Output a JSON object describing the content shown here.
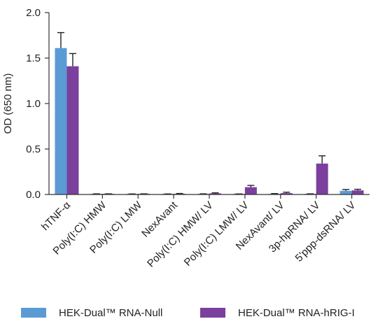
{
  "chart_data": {
    "type": "bar",
    "ylabel": "OD (650 nm)",
    "xlabel": "",
    "ylim": [
      0,
      2.0
    ],
    "yticks": [
      "0.0",
      "0.5",
      "1.0",
      "1.5",
      "2.0"
    ],
    "ytick_values": [
      0,
      0.5,
      1.0,
      1.5,
      2.0
    ],
    "grid": false,
    "legend_position": "bottom",
    "categories": [
      "hTNF-α",
      "Poly(I:C) HMW",
      "Poly(I:C) LMW",
      "NexAvant",
      "Poly(I:C) HMW/ LV",
      "Poly(I:C) LMW/ LV",
      "NexAvant/ LV",
      "3p-hpRNA/ LV",
      "5'ppp-dsRNA/ LV"
    ],
    "series": [
      {
        "name": "HEK-Dual™ RNA-Null",
        "color": "#5b9bd5",
        "values": [
          1.61,
          0.005,
          0.004,
          0.004,
          0.005,
          0.004,
          0.006,
          0.005,
          0.04
        ],
        "errors": [
          0.17,
          0.002,
          0.002,
          0.002,
          0.002,
          0.002,
          0.004,
          0.002,
          0.015
        ]
      },
      {
        "name": "HEK-Dual™ RNA-hRIG-I",
        "color": "#7b3f9e",
        "values": [
          1.41,
          0.005,
          0.005,
          0.007,
          0.012,
          0.08,
          0.015,
          0.34,
          0.045
        ],
        "errors": [
          0.14,
          0.002,
          0.002,
          0.004,
          0.006,
          0.02,
          0.01,
          0.085,
          0.012
        ]
      }
    ]
  }
}
